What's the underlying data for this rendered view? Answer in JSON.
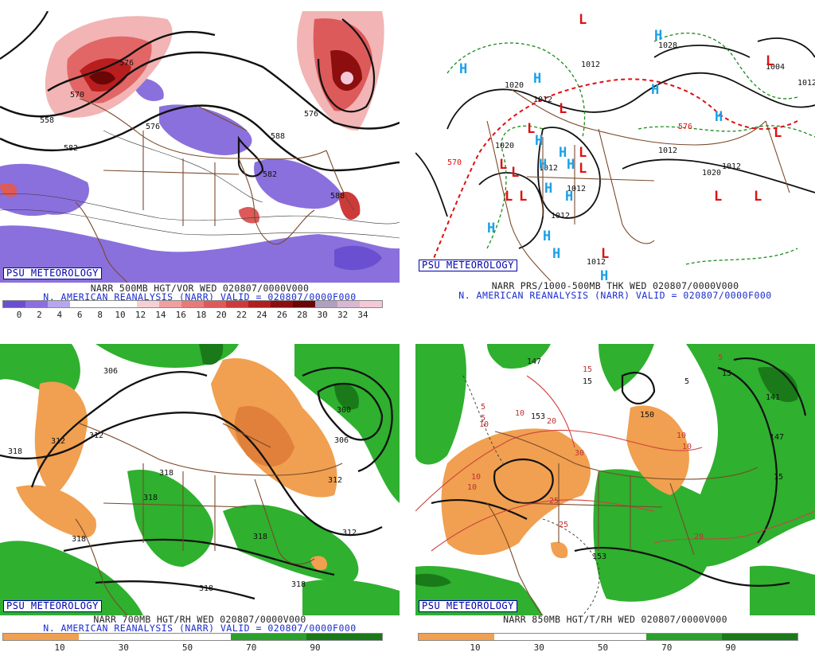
{
  "branding": "PSU METEOROLOGY",
  "panels": [
    {
      "title": "NARR 500MB HGT/VOR WED 020807/0000V000",
      "subtitle": "N. AMERICAN REANALYSIS (NARR) VALID = 020807/0000F000",
      "colorbar": {
        "ticks": [
          "0",
          "2",
          "4",
          "6",
          "8",
          "10",
          "12",
          "14",
          "16",
          "18",
          "20",
          "22",
          "24",
          "26",
          "28",
          "30",
          "32",
          "34"
        ],
        "colors": [
          "#6a4fd0",
          "#8c6ee0",
          "#b7a6ee",
          "#ffffff",
          "#ffffff",
          "#ffffff",
          "#f6d0d0",
          "#f0a0a0",
          "#e87a7a",
          "#dc5a5a",
          "#cc3a3a",
          "#b01e1e",
          "#8c0e0e",
          "#6a0606",
          "#b0a0c0",
          "#d8b8d0",
          "#f4c8d8"
        ]
      },
      "contour_labels": [
        "570",
        "576",
        "582",
        "588",
        "588",
        "576",
        "576",
        "582",
        "558"
      ]
    },
    {
      "title": "NARR PRS/1000-500MB THK WED 020807/0000V000",
      "subtitle": "N. AMERICAN REANALYSIS (NARR) VALID = 020807/0000F000",
      "contour_labels": [
        "1012",
        "1020",
        "1012",
        "1020",
        "1012",
        "1028",
        "1004",
        "1012",
        "1020",
        "1012",
        "1012",
        "1012",
        "1012",
        "1012",
        "570",
        "576"
      ],
      "high_symbol": "H",
      "low_symbol": "L"
    },
    {
      "title": "NARR 700MB HGT/RH WED 020807/0000V000",
      "subtitle": "N. AMERICAN REANALYSIS (NARR) VALID = 020807/0000F000",
      "colorbar": {
        "ticks": [
          "10",
          "30",
          "50",
          "70",
          "90"
        ],
        "colors": [
          "#f0a050",
          "#ffffff",
          "#ffffff",
          "#2ca02c",
          "#1a7a1a"
        ]
      },
      "contour_labels": [
        "306",
        "312",
        "312",
        "318",
        "318",
        "318",
        "300",
        "306",
        "312",
        "312",
        "318",
        "318",
        "318",
        "318"
      ]
    },
    {
      "title": "NARR 850MB HGT/T/RH WED 020807/0000V000",
      "subtitle": "",
      "colorbar": {
        "ticks": [
          "10",
          "30",
          "50",
          "70",
          "90"
        ],
        "colors": [
          "#f0a050",
          "#ffffff",
          "#ffffff",
          "#2ca02c",
          "#1a7a1a"
        ]
      },
      "contour_labels": [
        "147",
        "153",
        "150",
        "15",
        "5",
        "5",
        "5",
        "10",
        "10",
        "20",
        "30",
        "25",
        "25",
        "15",
        "10",
        "10",
        "10",
        "10",
        "20",
        "153",
        "141",
        "147",
        "15",
        "5",
        "15"
      ]
    }
  ]
}
